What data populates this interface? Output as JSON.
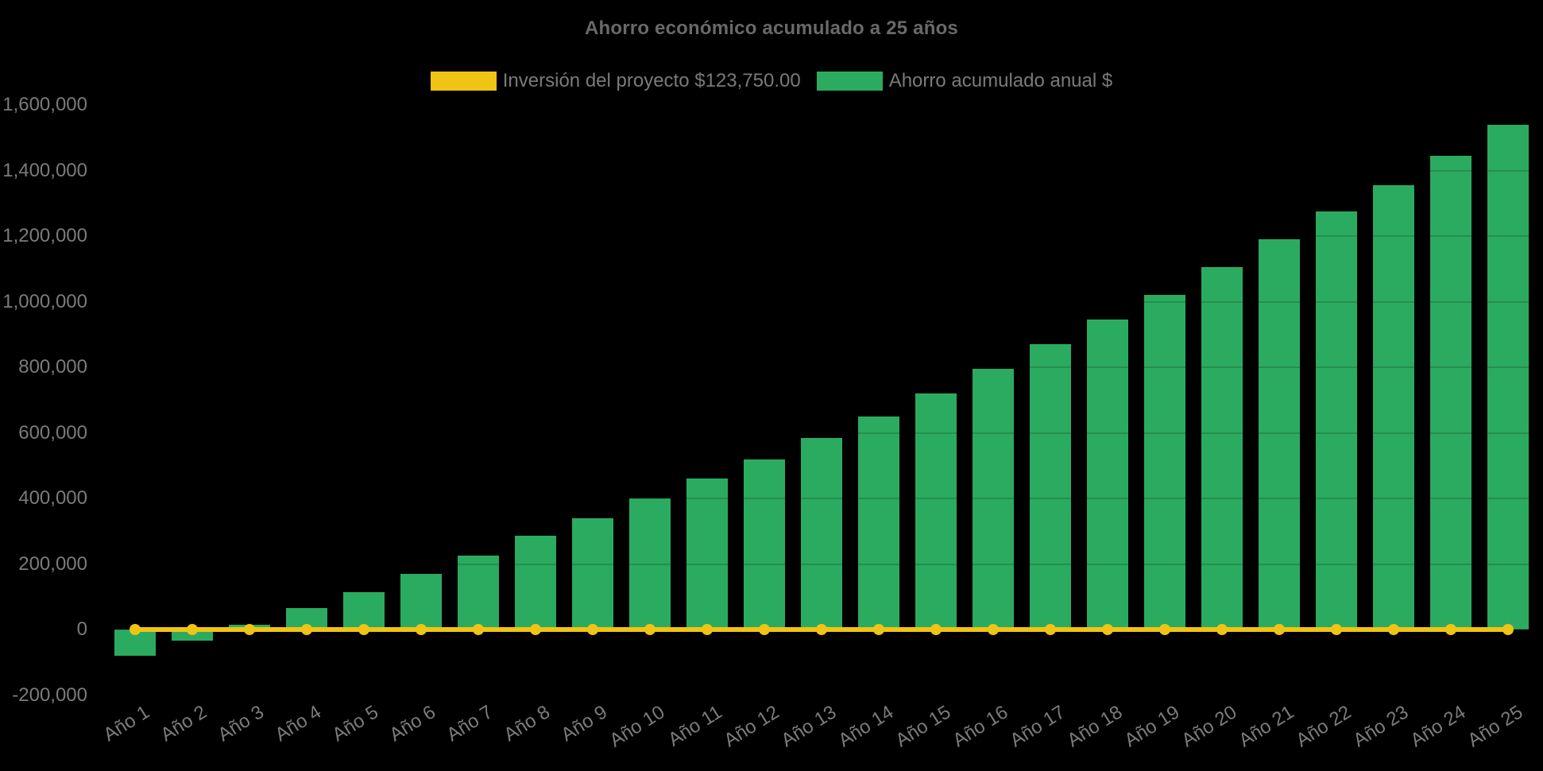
{
  "chart_data": {
    "type": "bar",
    "title": "Ahorro económico acumulado a 25 años",
    "categories": [
      "Año 1",
      "Año 2",
      "Año 3",
      "Año 4",
      "Año 5",
      "Año 6",
      "Año 7",
      "Año 8",
      "Año 9",
      "Año 10",
      "Año 11",
      "Año 12",
      "Año 13",
      "Año 14",
      "Año 15",
      "Año 16",
      "Año 17",
      "Año 18",
      "Año 19",
      "Año 20",
      "Año 21",
      "Año 22",
      "Año 23",
      "Año 24",
      "Año 25"
    ],
    "series": [
      {
        "name": "Inversión del proyecto $123,750.00",
        "type": "line",
        "color": "#f0c414",
        "values": [
          0,
          0,
          0,
          0,
          0,
          0,
          0,
          0,
          0,
          0,
          0,
          0,
          0,
          0,
          0,
          0,
          0,
          0,
          0,
          0,
          0,
          0,
          0,
          0,
          0
        ]
      },
      {
        "name": "Ahorro acumulado anual $",
        "type": "bar",
        "color": "#2bab60",
        "values": [
          -80000,
          -35000,
          15000,
          65000,
          115000,
          170000,
          225000,
          285000,
          340000,
          400000,
          460000,
          520000,
          585000,
          650000,
          720000,
          795000,
          870000,
          945000,
          1020000,
          1105000,
          1190000,
          1275000,
          1355000,
          1445000,
          1540000
        ]
      }
    ],
    "ylim": [
      -200000,
      1600000
    ],
    "y_tick_step": 200000,
    "y_tick_labels": [
      "1,600,000",
      "1,400,000",
      "1,200,000",
      "1,000,000",
      "800,000",
      "600,000",
      "400,000",
      "200,000",
      "0",
      "-200,000"
    ],
    "grid": "horizontal gridlines every 200,000, faint, visible only over bars",
    "legend_position": "top",
    "background": "#000000"
  }
}
